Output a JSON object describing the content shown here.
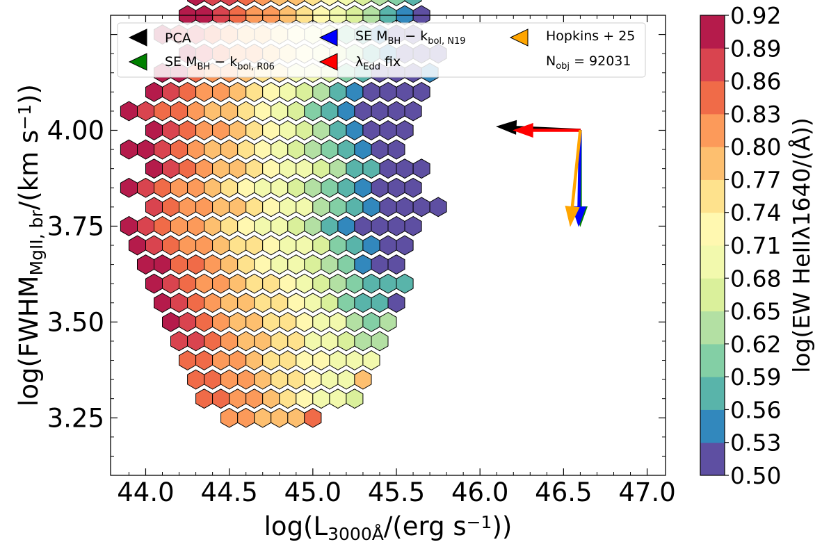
{
  "chart_data": {
    "type": "hexbin",
    "xlabel": "log(L3000Å/(erg s−1))",
    "xlabel_parts": {
      "pre": "log(L",
      "sub": "3000Å",
      "mid": "/(erg s",
      "sup": "−1",
      "post": "))"
    },
    "ylabel": "log(FWHMMgII, br/(km s−1))",
    "ylabel_parts": {
      "pre": "log(FWHM",
      "sub": "MgII, br",
      "mid": "/(km s",
      "sup": "−1",
      "post": "))"
    },
    "xlim": [
      43.79,
      47.11
    ],
    "ylim": [
      3.1,
      4.3
    ],
    "xticks": [
      "44.0",
      "44.5",
      "45.0",
      "45.5",
      "46.0",
      "46.5",
      "47.0"
    ],
    "xtick_values": [
      44.0,
      44.5,
      45.0,
      45.5,
      46.0,
      46.5,
      47.0
    ],
    "yticks": [
      "3.25",
      "3.50",
      "3.75",
      "4.00"
    ],
    "ytick_values": [
      3.25,
      3.5,
      3.75,
      4.0
    ],
    "hex_grid": {
      "x0": 45.0,
      "dx": 0.1,
      "y0": 3.25,
      "dy": 0.05,
      "rows": [
        {
          "j": 0,
          "i_start": -5,
          "values": [
            0.8,
            0.8,
            0.79,
            0.77,
            0.77,
            0.86
          ]
        },
        {
          "j": 1,
          "i_start": -7,
          "values": [
            0.86,
            0.84,
            0.83,
            0.81,
            0.78,
            0.75,
            0.73,
            0.71,
            0.69,
            0.67
          ]
        },
        {
          "j": 2,
          "i_start": -7,
          "values": [
            0.86,
            0.85,
            0.82,
            0.8,
            0.78,
            0.76,
            0.74,
            0.72,
            0.71,
            0.7,
            0.77
          ]
        },
        {
          "j": 3,
          "i_start": -8,
          "values": [
            0.86,
            0.85,
            0.82,
            0.8,
            0.78,
            0.76,
            0.75,
            0.73,
            0.72,
            0.71,
            0.7,
            0.69
          ]
        },
        {
          "j": 4,
          "i_start": -8,
          "values": [
            0.89,
            0.88,
            0.84,
            0.81,
            0.79,
            0.77,
            0.75,
            0.74,
            0.71,
            0.69,
            0.66,
            0.62,
            0.63
          ]
        },
        {
          "j": 5,
          "i_start": -9,
          "values": [
            0.91,
            0.89,
            0.86,
            0.82,
            0.79,
            0.77,
            0.76,
            0.75,
            0.73,
            0.7,
            0.68,
            0.62,
            0.61,
            0.63
          ]
        },
        {
          "j": 6,
          "i_start": -9,
          "values": [
            0.92,
            0.87,
            0.84,
            0.81,
            0.79,
            0.77,
            0.76,
            0.74,
            0.72,
            0.7,
            0.66,
            0.6,
            0.59,
            0.56,
            0.5
          ]
        },
        {
          "j": 7,
          "i_start": -10,
          "values": [
            0.91,
            0.88,
            0.85,
            0.82,
            0.8,
            0.78,
            0.76,
            0.74,
            0.72,
            0.7,
            0.66,
            0.62,
            0.6,
            0.57,
            0.58,
            0.56
          ]
        },
        {
          "j": 8,
          "i_start": -10,
          "values": [
            0.92,
            0.9,
            0.86,
            0.84,
            0.81,
            0.78,
            0.76,
            0.73,
            0.71,
            0.69,
            0.67,
            0.63,
            0.6,
            0.55,
            0.52,
            0.51
          ]
        },
        {
          "j": 9,
          "i_start": -11,
          "values": [
            0.91,
            0.89,
            0.86,
            0.83,
            0.8,
            0.78,
            0.76,
            0.74,
            0.72,
            0.7,
            0.68,
            0.65,
            0.6,
            0.57,
            0.53,
            0.52,
            0.5
          ]
        },
        {
          "j": 10,
          "i_start": -11,
          "values": [
            0.91,
            0.88,
            0.85,
            0.82,
            0.8,
            0.78,
            0.75,
            0.73,
            0.71,
            0.68,
            0.66,
            0.63,
            0.59,
            0.55,
            0.52,
            0.51,
            0.5,
            0.5
          ]
        },
        {
          "j": 11,
          "i_start": -10,
          "values": [
            0.89,
            0.86,
            0.83,
            0.81,
            0.79,
            0.77,
            0.74,
            0.72,
            0.7,
            0.68,
            0.63,
            0.61,
            0.57,
            0.53,
            0.52,
            0.5,
            0.5,
            0.5
          ]
        },
        {
          "j": 12,
          "i_start": -11,
          "values": [
            0.92,
            0.89,
            0.86,
            0.83,
            0.81,
            0.79,
            0.76,
            0.73,
            0.71,
            0.69,
            0.66,
            0.62,
            0.61,
            0.57,
            0.54,
            0.51,
            0.5,
            0.51
          ]
        },
        {
          "j": 13,
          "i_start": -10,
          "values": [
            0.91,
            0.88,
            0.85,
            0.82,
            0.79,
            0.77,
            0.74,
            0.72,
            0.7,
            0.68,
            0.65,
            0.62,
            0.59,
            0.56,
            0.52,
            0.51,
            0.5
          ]
        },
        {
          "j": 14,
          "i_start": -11,
          "values": [
            0.92,
            0.9,
            0.87,
            0.84,
            0.81,
            0.79,
            0.77,
            0.75,
            0.72,
            0.7,
            0.67,
            0.64,
            0.61,
            0.58,
            0.55,
            0.52,
            0.5
          ]
        },
        {
          "j": 15,
          "i_start": -10,
          "values": [
            0.91,
            0.88,
            0.85,
            0.82,
            0.8,
            0.78,
            0.76,
            0.73,
            0.7,
            0.67,
            0.63,
            0.58,
            0.54,
            0.51,
            0.5,
            0.51
          ]
        },
        {
          "j": 16,
          "i_start": -11,
          "values": [
            0.91,
            0.89,
            0.86,
            0.84,
            0.81,
            0.79,
            0.77,
            0.74,
            0.72,
            0.7,
            0.66,
            0.61,
            0.57,
            0.54,
            0.51,
            0.5,
            0.5,
            0.5
          ]
        },
        {
          "j": 17,
          "i_start": -10,
          "values": [
            0.9,
            0.87,
            0.84,
            0.82,
            0.8,
            0.78,
            0.75,
            0.73,
            0.7,
            0.67,
            0.63,
            0.59,
            0.55,
            0.52,
            0.5,
            0.5,
            0.5
          ]
        },
        {
          "j": 18,
          "i_start": -9,
          "values": [
            0.92,
            0.9,
            0.86,
            0.83,
            0.81,
            0.79,
            0.76,
            0.74,
            0.71,
            0.68,
            0.65,
            0.6,
            0.56,
            0.52,
            0.51,
            0.5,
            0.54
          ]
        },
        {
          "j": 19,
          "i_start": -8,
          "values": [
            0.92,
            0.88,
            0.85,
            0.82,
            0.8,
            0.78,
            0.75,
            0.72,
            0.69,
            0.66,
            0.62,
            0.57,
            0.53,
            0.51,
            0.5,
            0.5
          ]
        },
        {
          "j": 20,
          "i_start": -9,
          "values": [
            0.91,
            0.89,
            0.87,
            0.84,
            0.82,
            0.79,
            0.77,
            0.75,
            0.72,
            0.69,
            0.66,
            0.61,
            0.56,
            0.53,
            0.51,
            0.5
          ]
        },
        {
          "j": 21,
          "i_start": -8,
          "values": [
            0.92,
            0.9,
            0.88,
            0.85,
            0.83,
            0.8,
            0.78,
            0.76,
            0.73,
            0.7,
            0.66,
            0.62,
            0.58,
            0.55,
            0.52
          ]
        },
        {
          "j": 22,
          "i_start": -7,
          "values": [
            0.91,
            0.89,
            0.87,
            0.84,
            0.81,
            0.79,
            0.77,
            0.74,
            0.72,
            0.7,
            0.67,
            0.63,
            0.6,
            0.56
          ]
        },
        {
          "j": 23,
          "i_start": -7,
          "values": [
            0.92,
            0.9,
            0.88,
            0.85,
            0.82,
            0.8,
            0.78,
            0.75,
            0.73,
            0.71,
            0.68,
            0.66
          ]
        },
        {
          "j": 24,
          "i_start": -6,
          "values": [
            0.9,
            0.88,
            0.86,
            0.84,
            0.8,
            0.78,
            0.76,
            0.74,
            0.72,
            0.7,
            0.66
          ]
        },
        {
          "j": 25,
          "i_start": -5,
          "values": [
            0.91,
            0.88,
            0.85,
            0.82,
            0.79,
            0.77,
            0.75,
            0.62,
            0.7
          ]
        },
        {
          "j": 26,
          "i_start": -4,
          "values": [
            0.89,
            0.8,
            0.78,
            0.78,
            0.76,
            0.76
          ]
        }
      ]
    },
    "arrows": [
      {
        "name": "PCA",
        "color": "#000000",
        "x0": 46.6,
        "y0": 4.0,
        "x1": 46.1,
        "y1": 4.01
      },
      {
        "name": "SEM_BH - k_bol,R06",
        "color": "#008000",
        "x0": 46.6,
        "y0": 4.0,
        "x1": 46.6,
        "y1": 3.75
      },
      {
        "name": "SEM_BH - k_bol,N19",
        "color": "#0000ff",
        "x0": 46.6,
        "y0": 4.0,
        "x1": 46.59,
        "y1": 3.75
      },
      {
        "name": "λEdd fix",
        "color": "#ff0000",
        "x0": 46.6,
        "y0": 4.0,
        "x1": 46.2,
        "y1": 4.0
      },
      {
        "name": "Hopkins+25",
        "color": "#ffa500",
        "x0": 46.6,
        "y0": 4.0,
        "x1": 46.54,
        "y1": 3.75
      }
    ],
    "legend": {
      "placement": "top",
      "entries": [
        {
          "label": "PCA",
          "color": "#000000"
        },
        {
          "label": "SE MBH − kbol, R06",
          "color": "#008000"
        },
        {
          "label": "SE MBH − kbol, N19",
          "color": "#0000ff"
        },
        {
          "label": "λEdd fix",
          "color": "#ff0000"
        },
        {
          "label": "Hopkins + 25",
          "color": "#ffa500"
        }
      ],
      "entry_parts": [
        {
          "pre": "SE M",
          "sub": "BH",
          "mid": " − k",
          "sub2": "bol, R06"
        },
        {
          "pre": "SE M",
          "sub": "BH",
          "mid": " − k",
          "sub2": "bol, N19"
        },
        {
          "pre": "λ",
          "sub": "Edd",
          "mid": " fix",
          "sub2": ""
        }
      ],
      "nobj_label": "Nobj = 92031",
      "nobj_parts": {
        "pre": "N",
        "sub": "obj",
        "post": " = 92031"
      }
    },
    "colorbar": {
      "label": "log(EW HeIIλ1640/(Å))",
      "min": 0.5,
      "max": 0.92,
      "tick_labels": [
        "0.92",
        "0.89",
        "0.86",
        "0.83",
        "0.80",
        "0.77",
        "0.74",
        "0.71",
        "0.68",
        "0.65",
        "0.62",
        "0.59",
        "0.56",
        "0.53",
        "0.50"
      ],
      "tick_values": [
        0.92,
        0.89,
        0.86,
        0.83,
        0.8,
        0.77,
        0.74,
        0.71,
        0.68,
        0.65,
        0.62,
        0.59,
        0.56,
        0.53,
        0.5
      ],
      "colors": [
        "#5e4fa2",
        "#3288bd",
        "#59b4aa",
        "#83cfa5",
        "#b3e0a3",
        "#daf09b",
        "#f2f9ad",
        "#fff8b0",
        "#fee28d",
        "#fdbf6f",
        "#fc9a5a",
        "#f06b48",
        "#d9444f",
        "#b51b4b"
      ]
    }
  }
}
